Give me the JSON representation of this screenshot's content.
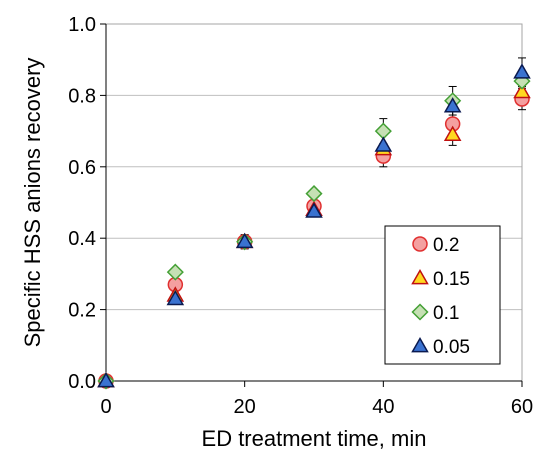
{
  "chart_data": {
    "type": "scatter",
    "title": "",
    "xlabel": "ED treatment time, min",
    "ylabel": "Specific HSS anions recovery",
    "xlim": [
      0,
      60
    ],
    "ylim": [
      0.0,
      1.0
    ],
    "x_ticks": [
      "0",
      "20",
      "40",
      "60"
    ],
    "y_ticks": [
      "0.0",
      "0.2",
      "0.4",
      "0.6",
      "0.8",
      "1.0"
    ],
    "grid": "horizontal",
    "legend_position": "bottom-right",
    "x": [
      0,
      10,
      20,
      30,
      40,
      50,
      60
    ],
    "series": [
      {
        "name": "0.2",
        "marker": "circle",
        "fill": "#f4a0a0",
        "stroke": "#e03030",
        "values": [
          0.0,
          0.27,
          0.39,
          0.49,
          0.63,
          0.72,
          0.79
        ],
        "errors": [
          0.0,
          0.0,
          0.02,
          0.0,
          0.03,
          0.06,
          0.03
        ]
      },
      {
        "name": "0.15",
        "marker": "triangle",
        "fill": "#ffd820",
        "stroke": "#c01010",
        "values": [
          0.0,
          0.24,
          0.39,
          0.48,
          0.65,
          0.69,
          0.81
        ],
        "errors": [
          0.0,
          0.0,
          0.0,
          0.0,
          0.0,
          0.0,
          0.0
        ]
      },
      {
        "name": "0.1",
        "marker": "diamond",
        "fill": "#c6e0b4",
        "stroke": "#44a035",
        "values": [
          0.0,
          0.305,
          0.39,
          0.525,
          0.7,
          0.785,
          0.84
        ],
        "errors": [
          0.0,
          0.0,
          0.0,
          0.0,
          0.035,
          0.04,
          0.0
        ]
      },
      {
        "name": "0.05",
        "marker": "triangle",
        "fill": "#3a72d0",
        "stroke": "#0a1a50",
        "values": [
          0.0,
          0.23,
          0.39,
          0.475,
          0.66,
          0.77,
          0.865
        ],
        "errors": [
          0.0,
          0.0,
          0.0,
          0.0,
          0.0,
          0.0,
          0.04
        ]
      }
    ]
  }
}
